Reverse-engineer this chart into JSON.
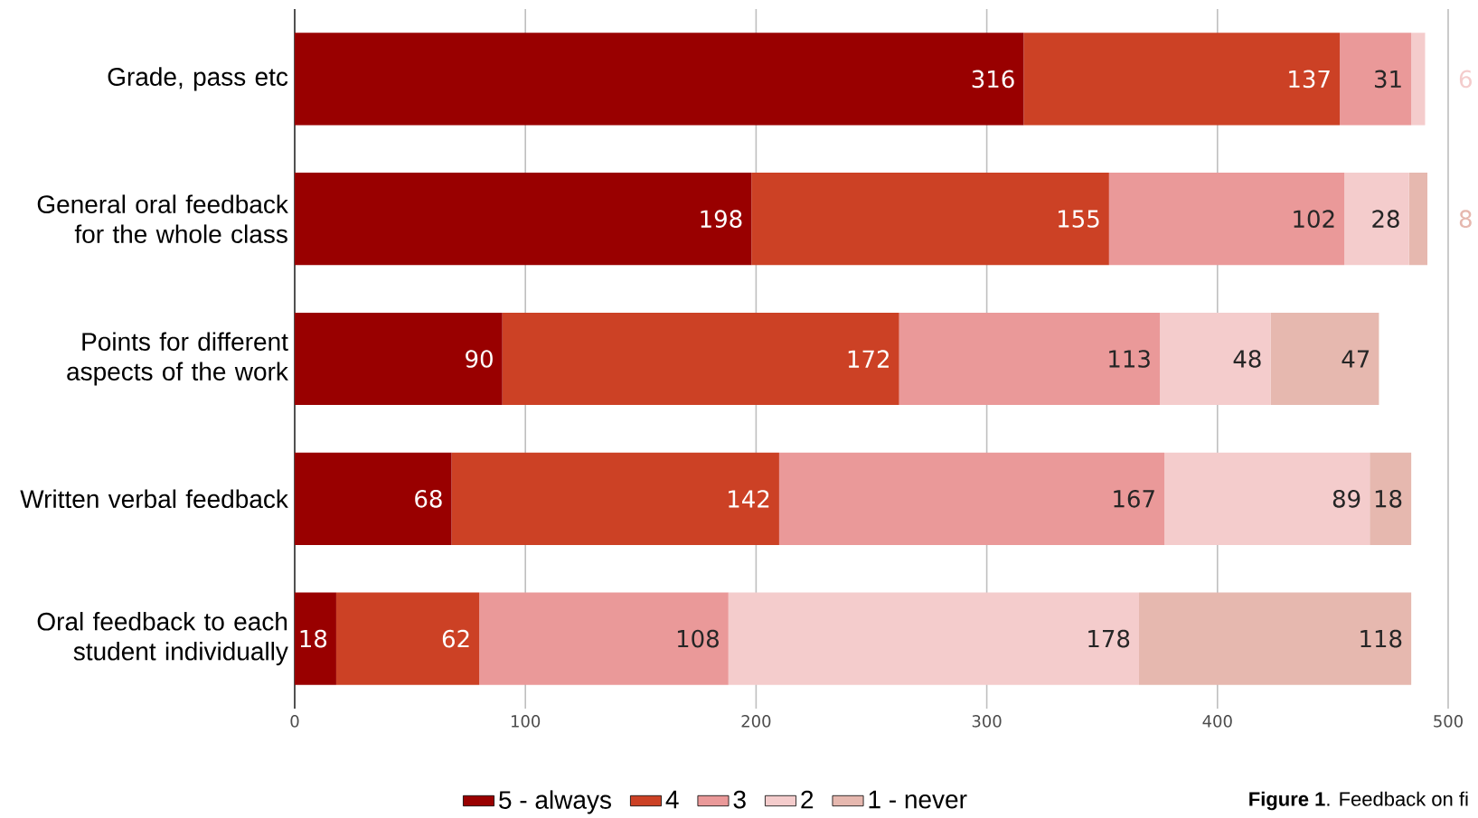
{
  "chart_data": {
    "type": "bar",
    "orientation": "horizontal",
    "stacked": true,
    "categories": [
      "Grade, pass etc",
      "General oral feedback for the whole class",
      "Points for different aspects of the work",
      "Written verbal feedback",
      "Oral feedback to each student individually"
    ],
    "series": [
      {
        "name": "5 - always",
        "color": "#990000",
        "values": [
          316,
          198,
          90,
          68,
          18
        ]
      },
      {
        "name": "4",
        "color": "#cc4125",
        "values": [
          137,
          155,
          172,
          142,
          62
        ]
      },
      {
        "name": "3",
        "color": "#ea9999",
        "values": [
          31,
          102,
          113,
          167,
          108
        ]
      },
      {
        "name": "2",
        "color": "#f4cccc",
        "values": [
          6,
          28,
          48,
          89,
          178
        ]
      },
      {
        "name": "1 - never",
        "color": "#e6b8af",
        "values": [
          null,
          8,
          47,
          18,
          118
        ]
      }
    ],
    "xlim": [
      0,
      500
    ],
    "xticks": [
      0,
      100,
      200,
      300,
      400,
      500
    ],
    "grid": "x",
    "legend": "bottom",
    "data_labels": true,
    "annotations": [
      "**Figure 1**. Feedback on fi"
    ]
  }
}
